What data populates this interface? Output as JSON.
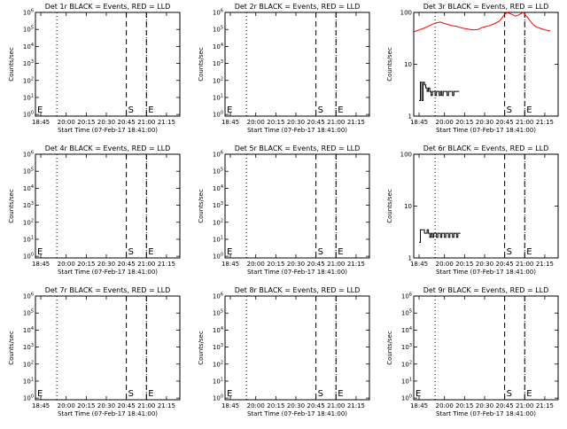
{
  "x_tick_labels": [
    "18:45",
    "20:00",
    "20:15",
    "20:30",
    "20:45",
    "21:00",
    "21:15"
  ],
  "xlabel": "Start Time (07-Feb-17 18:41:00)",
  "ylabel": "Counts/sec",
  "marker_start": "S",
  "marker_end": "E",
  "colors": {
    "events": "#000000",
    "lld": "#ff0000",
    "axes": "#000000",
    "background": "#ffffff"
  },
  "chart_data": [
    {
      "type": "line",
      "title": "Det 1r BLACK = Events, RED = LLD",
      "log_scale": true,
      "y_ticks": [
        {
          "v": 1,
          "label": "10^0"
        },
        {
          "v": 10,
          "label": "10^1"
        },
        {
          "v": 100,
          "label": "10^2"
        },
        {
          "v": 1000,
          "label": "10^3"
        },
        {
          "v": 10000,
          "label": "10^4"
        },
        {
          "v": 100000,
          "label": "10^5"
        },
        {
          "v": 1000000,
          "label": "10^6"
        }
      ],
      "ylim": [
        0.8,
        1000000
      ],
      "x_ticks": [
        0,
        19,
        34,
        49,
        64,
        79,
        94
      ],
      "xlim": [
        -4,
        104
      ],
      "events": [],
      "lld": [],
      "marker_lines": [
        {
          "x": 12,
          "style": "dotted"
        },
        {
          "x": 64,
          "style": "dashed"
        },
        {
          "x": 79,
          "style": "dashed"
        },
        {
          "x": 79,
          "style": "dotted"
        }
      ],
      "start_x": 64,
      "end_x": 79
    },
    {
      "type": "line",
      "title": "Det 2r BLACK = Events, RED = LLD",
      "log_scale": true,
      "y_ticks": [
        {
          "v": 1,
          "label": "10^0"
        },
        {
          "v": 10,
          "label": "10^1"
        },
        {
          "v": 100,
          "label": "10^2"
        },
        {
          "v": 1000,
          "label": "10^3"
        },
        {
          "v": 10000,
          "label": "10^4"
        },
        {
          "v": 100000,
          "label": "10^5"
        },
        {
          "v": 1000000,
          "label": "10^6"
        }
      ],
      "ylim": [
        0.8,
        1000000
      ],
      "x_ticks": [
        0,
        19,
        34,
        49,
        64,
        79,
        94
      ],
      "xlim": [
        -4,
        104
      ],
      "events": [],
      "lld": [],
      "marker_lines": [
        {
          "x": 12,
          "style": "dotted"
        },
        {
          "x": 64,
          "style": "dashed"
        },
        {
          "x": 79,
          "style": "dashed"
        },
        {
          "x": 79,
          "style": "dotted"
        }
      ],
      "start_x": 64,
      "end_x": 79
    },
    {
      "type": "line",
      "title": "Det 3r BLACK = Events, RED = LLD",
      "log_scale": true,
      "y_ticks": [
        {
          "v": 1,
          "label": "1"
        },
        {
          "v": 10,
          "label": "10"
        },
        {
          "v": 100,
          "label": "100"
        }
      ],
      "ylim": [
        1,
        100
      ],
      "x_ticks": [
        0,
        19,
        34,
        49,
        64,
        79,
        94
      ],
      "xlim": [
        -4,
        104
      ],
      "events": [
        [
          0,
          2
        ],
        [
          1,
          4.5
        ],
        [
          2,
          2
        ],
        [
          3,
          4.5
        ],
        [
          4,
          4
        ],
        [
          5,
          3.5
        ],
        [
          6,
          3
        ],
        [
          7,
          3.5
        ],
        [
          8,
          3
        ],
        [
          9,
          2.5
        ],
        [
          10,
          3
        ],
        [
          11,
          3
        ],
        [
          12,
          2.5
        ],
        [
          13,
          3
        ],
        [
          14,
          3
        ],
        [
          15,
          2.5
        ],
        [
          16,
          3
        ],
        [
          17,
          2.5
        ],
        [
          18,
          3
        ],
        [
          19,
          3
        ],
        [
          20,
          3
        ],
        [
          21,
          2.5
        ],
        [
          22,
          3
        ],
        [
          23,
          3
        ],
        [
          24,
          3
        ],
        [
          25,
          2.5
        ],
        [
          26,
          3
        ],
        [
          27,
          3
        ],
        [
          28,
          3
        ],
        [
          29,
          3
        ]
      ],
      "lld": [
        [
          -4,
          42
        ],
        [
          0,
          46
        ],
        [
          4,
          50
        ],
        [
          8,
          56
        ],
        [
          12,
          62
        ],
        [
          16,
          65
        ],
        [
          20,
          60
        ],
        [
          24,
          56
        ],
        [
          28,
          54
        ],
        [
          32,
          50
        ],
        [
          36,
          48
        ],
        [
          40,
          46
        ],
        [
          44,
          47
        ],
        [
          48,
          52
        ],
        [
          52,
          55
        ],
        [
          56,
          60
        ],
        [
          60,
          68
        ],
        [
          62,
          78
        ],
        [
          64,
          92
        ],
        [
          66,
          99
        ],
        [
          68,
          95
        ],
        [
          70,
          90
        ],
        [
          72,
          85
        ],
        [
          74,
          88
        ],
        [
          76,
          94
        ],
        [
          78,
          100
        ],
        [
          80,
          86
        ],
        [
          82,
          74
        ],
        [
          84,
          64
        ],
        [
          86,
          56
        ],
        [
          88,
          52
        ],
        [
          90,
          50
        ],
        [
          92,
          48
        ],
        [
          94,
          46
        ],
        [
          96,
          45
        ],
        [
          98,
          44
        ]
      ],
      "marker_lines": [
        {
          "x": 12,
          "style": "dotted"
        },
        {
          "x": 64,
          "style": "dashed"
        },
        {
          "x": 79,
          "style": "dashed"
        },
        {
          "x": 79,
          "style": "dotted"
        }
      ],
      "start_x": 64,
      "end_x": 79
    },
    {
      "type": "line",
      "title": "Det 4r BLACK = Events, RED = LLD",
      "log_scale": true,
      "y_ticks": [
        {
          "v": 1,
          "label": "10^0"
        },
        {
          "v": 10,
          "label": "10^1"
        },
        {
          "v": 100,
          "label": "10^2"
        },
        {
          "v": 1000,
          "label": "10^3"
        },
        {
          "v": 10000,
          "label": "10^4"
        },
        {
          "v": 100000,
          "label": "10^5"
        },
        {
          "v": 1000000,
          "label": "10^6"
        }
      ],
      "ylim": [
        0.8,
        1000000
      ],
      "x_ticks": [
        0,
        19,
        34,
        49,
        64,
        79,
        94
      ],
      "xlim": [
        -4,
        104
      ],
      "events": [],
      "lld": [],
      "marker_lines": [
        {
          "x": 12,
          "style": "dotted"
        },
        {
          "x": 64,
          "style": "dashed"
        },
        {
          "x": 79,
          "style": "dashed"
        },
        {
          "x": 79,
          "style": "dotted"
        }
      ],
      "start_x": 64,
      "end_x": 79
    },
    {
      "type": "line",
      "title": "Det 5r BLACK = Events, RED = LLD",
      "log_scale": true,
      "y_ticks": [
        {
          "v": 1,
          "label": "10^0"
        },
        {
          "v": 10,
          "label": "10^1"
        },
        {
          "v": 100,
          "label": "10^2"
        },
        {
          "v": 1000,
          "label": "10^3"
        },
        {
          "v": 10000,
          "label": "10^4"
        },
        {
          "v": 100000,
          "label": "10^5"
        },
        {
          "v": 1000000,
          "label": "10^6"
        }
      ],
      "ylim": [
        0.8,
        1000000
      ],
      "x_ticks": [
        0,
        19,
        34,
        49,
        64,
        79,
        94
      ],
      "xlim": [
        -4,
        104
      ],
      "events": [],
      "lld": [],
      "marker_lines": [
        {
          "x": 12,
          "style": "dotted"
        },
        {
          "x": 64,
          "style": "dashed"
        },
        {
          "x": 79,
          "style": "dashed"
        },
        {
          "x": 79,
          "style": "dotted"
        }
      ],
      "start_x": 64,
      "end_x": 79
    },
    {
      "type": "line",
      "title": "Det 6r BLACK = Events, RED = LLD",
      "log_scale": true,
      "y_ticks": [
        {
          "v": 1,
          "label": "1"
        },
        {
          "v": 10,
          "label": "10"
        },
        {
          "v": 100,
          "label": "100"
        }
      ],
      "ylim": [
        1,
        100
      ],
      "x_ticks": [
        0,
        19,
        34,
        49,
        64,
        79,
        94
      ],
      "xlim": [
        -4,
        104
      ],
      "events": [
        [
          0,
          2
        ],
        [
          1,
          3.5
        ],
        [
          2,
          3.5
        ],
        [
          3,
          3.5
        ],
        [
          4,
          3
        ],
        [
          5,
          3
        ],
        [
          6,
          3.5
        ],
        [
          7,
          3
        ],
        [
          8,
          2.5
        ],
        [
          9,
          3
        ],
        [
          10,
          2.5
        ],
        [
          11,
          3
        ],
        [
          12,
          3
        ],
        [
          13,
          2.5
        ],
        [
          14,
          3
        ],
        [
          15,
          3
        ],
        [
          16,
          2.5
        ],
        [
          17,
          3
        ],
        [
          18,
          3
        ],
        [
          19,
          2.5
        ],
        [
          20,
          3
        ],
        [
          21,
          3
        ],
        [
          22,
          2.5
        ],
        [
          23,
          3
        ],
        [
          24,
          3
        ],
        [
          25,
          2.5
        ],
        [
          26,
          3
        ],
        [
          27,
          3
        ],
        [
          28,
          2.5
        ],
        [
          29,
          3
        ],
        [
          30,
          3
        ]
      ],
      "lld": [],
      "marker_lines": [
        {
          "x": 12,
          "style": "dotted"
        },
        {
          "x": 64,
          "style": "dashed"
        },
        {
          "x": 79,
          "style": "dashed"
        },
        {
          "x": 79,
          "style": "dotted"
        }
      ],
      "start_x": 64,
      "end_x": 79
    },
    {
      "type": "line",
      "title": "Det 7r BLACK = Events, RED = LLD",
      "log_scale": true,
      "y_ticks": [
        {
          "v": 1,
          "label": "10^0"
        },
        {
          "v": 10,
          "label": "10^1"
        },
        {
          "v": 100,
          "label": "10^2"
        },
        {
          "v": 1000,
          "label": "10^3"
        },
        {
          "v": 10000,
          "label": "10^4"
        },
        {
          "v": 100000,
          "label": "10^5"
        },
        {
          "v": 1000000,
          "label": "10^6"
        }
      ],
      "ylim": [
        0.8,
        1000000
      ],
      "x_ticks": [
        0,
        19,
        34,
        49,
        64,
        79,
        94
      ],
      "xlim": [
        -4,
        104
      ],
      "events": [],
      "lld": [],
      "marker_lines": [
        {
          "x": 12,
          "style": "dotted"
        },
        {
          "x": 64,
          "style": "dashed"
        },
        {
          "x": 79,
          "style": "dashed"
        },
        {
          "x": 79,
          "style": "dotted"
        }
      ],
      "start_x": 64,
      "end_x": 79
    },
    {
      "type": "line",
      "title": "Det 8r BLACK = Events, RED = LLD",
      "log_scale": true,
      "y_ticks": [
        {
          "v": 1,
          "label": "10^0"
        },
        {
          "v": 10,
          "label": "10^1"
        },
        {
          "v": 100,
          "label": "10^2"
        },
        {
          "v": 1000,
          "label": "10^3"
        },
        {
          "v": 10000,
          "label": "10^4"
        },
        {
          "v": 100000,
          "label": "10^5"
        },
        {
          "v": 1000000,
          "label": "10^6"
        }
      ],
      "ylim": [
        0.8,
        1000000
      ],
      "x_ticks": [
        0,
        19,
        34,
        49,
        64,
        79,
        94
      ],
      "xlim": [
        -4,
        104
      ],
      "events": [],
      "lld": [],
      "marker_lines": [
        {
          "x": 12,
          "style": "dotted"
        },
        {
          "x": 64,
          "style": "dashed"
        },
        {
          "x": 79,
          "style": "dashed"
        },
        {
          "x": 79,
          "style": "dotted"
        }
      ],
      "start_x": 64,
      "end_x": 79
    },
    {
      "type": "line",
      "title": "Det 9r BLACK = Events, RED = LLD",
      "log_scale": true,
      "y_ticks": [
        {
          "v": 1,
          "label": "10^0"
        },
        {
          "v": 10,
          "label": "10^1"
        },
        {
          "v": 100,
          "label": "10^2"
        },
        {
          "v": 1000,
          "label": "10^3"
        },
        {
          "v": 10000,
          "label": "10^4"
        },
        {
          "v": 100000,
          "label": "10^5"
        },
        {
          "v": 1000000,
          "label": "10^6"
        }
      ],
      "ylim": [
        0.8,
        1000000
      ],
      "x_ticks": [
        0,
        19,
        34,
        49,
        64,
        79,
        94
      ],
      "xlim": [
        -4,
        104
      ],
      "events": [],
      "lld": [],
      "marker_lines": [
        {
          "x": 12,
          "style": "dotted"
        },
        {
          "x": 64,
          "style": "dashed"
        },
        {
          "x": 79,
          "style": "dashed"
        },
        {
          "x": 79,
          "style": "dotted"
        }
      ],
      "start_x": 64,
      "end_x": 79
    }
  ]
}
